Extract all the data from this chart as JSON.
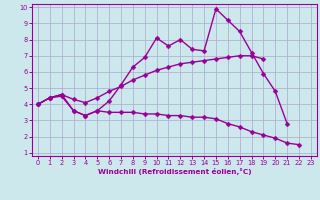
{
  "line1_x": [
    0,
    1,
    2,
    3,
    4,
    5,
    6,
    7,
    8,
    9,
    10,
    11,
    12,
    13,
    14,
    15,
    16,
    17,
    18,
    19,
    20,
    21,
    22,
    23
  ],
  "line1_y": [
    4.0,
    4.4,
    4.5,
    3.6,
    3.3,
    3.6,
    4.2,
    5.2,
    6.3,
    6.9,
    8.1,
    7.6,
    8.0,
    7.4,
    7.3,
    9.9,
    9.2,
    8.5,
    7.2,
    5.9,
    4.8,
    2.8,
    null,
    null
  ],
  "line2_x": [
    0,
    1,
    2,
    3,
    4,
    5,
    6,
    7,
    8,
    9,
    10,
    11,
    12,
    13,
    14,
    15,
    16,
    17,
    18,
    19,
    20,
    21,
    22,
    23
  ],
  "line2_y": [
    4.0,
    4.4,
    4.6,
    4.3,
    4.1,
    4.4,
    4.8,
    5.1,
    5.5,
    5.8,
    6.1,
    6.3,
    6.5,
    6.6,
    6.7,
    6.8,
    6.9,
    7.0,
    7.0,
    6.8,
    null,
    null,
    null,
    null
  ],
  "line3_x": [
    0,
    1,
    2,
    3,
    4,
    5,
    6,
    7,
    8,
    9,
    10,
    11,
    12,
    13,
    14,
    15,
    16,
    17,
    18,
    19,
    20,
    21,
    22,
    23
  ],
  "line3_y": [
    4.0,
    4.4,
    4.6,
    3.6,
    3.3,
    3.6,
    3.5,
    3.5,
    3.5,
    3.4,
    3.4,
    3.3,
    3.3,
    3.2,
    3.2,
    3.1,
    2.8,
    2.6,
    2.3,
    2.1,
    1.9,
    1.6,
    1.5,
    null
  ],
  "color": "#990099",
  "bg_color": "#cce8ec",
  "grid_color": "#aaaacc",
  "xlabel": "Windchill (Refroidissement éolien,°C)",
  "xlim": [
    -0.5,
    23.5
  ],
  "ylim": [
    0.8,
    10.2
  ],
  "xticks": [
    0,
    1,
    2,
    3,
    4,
    5,
    6,
    7,
    8,
    9,
    10,
    11,
    12,
    13,
    14,
    15,
    16,
    17,
    18,
    19,
    20,
    21,
    22,
    23
  ],
  "yticks": [
    1,
    2,
    3,
    4,
    5,
    6,
    7,
    8,
    9,
    10
  ],
  "marker": "D",
  "markersize": 2.5,
  "linewidth": 1.0
}
